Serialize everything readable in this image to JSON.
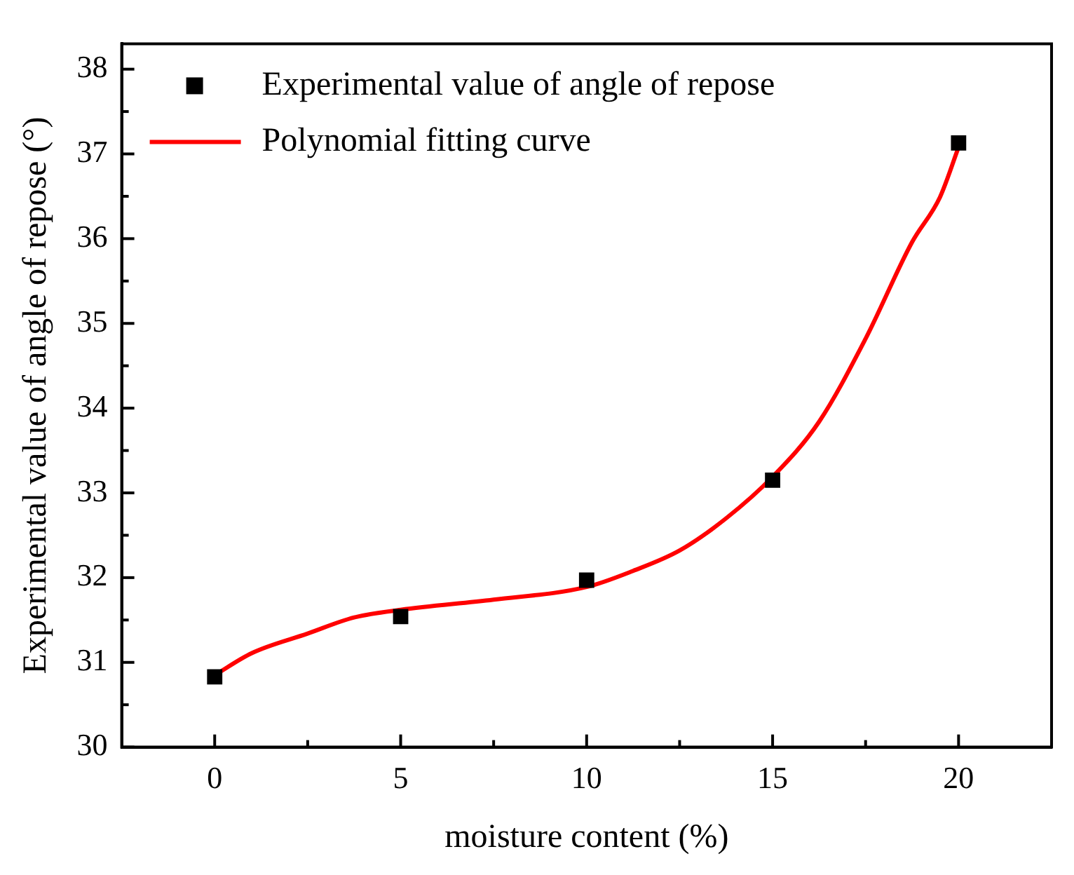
{
  "chart_data": {
    "type": "scatter",
    "xlabel": "moisture content (%)",
    "ylabel": "Experimental value of angle of repose (°)",
    "xlim": [
      -2.5,
      22.5
    ],
    "xticks": [
      0,
      {
        "value": 2.5,
        "label": null
      },
      5,
      {
        "value": 7.5,
        "label": null
      },
      10,
      {
        "value": 12.5,
        "label": null
      },
      15,
      {
        "value": 17.5,
        "label": null
      },
      20
    ],
    "ylim": [
      30,
      38.3
    ],
    "yticks": [
      30,
      {
        "value": 30.5,
        "label": null
      },
      31,
      {
        "value": 31.5,
        "label": null
      },
      32,
      {
        "value": 32.5,
        "label": null
      },
      33,
      {
        "value": 33.5,
        "label": null
      },
      34,
      {
        "value": 34.5,
        "label": null
      },
      35,
      {
        "value": 35.5,
        "label": null
      },
      36,
      {
        "value": 36.5,
        "label": null
      },
      37,
      {
        "value": 37.5,
        "label": null
      },
      38
    ],
    "grid": false,
    "legend": "top left",
    "series": [
      {
        "name": "Experimental value of angle of repose",
        "marker": "square",
        "color": "#000000",
        "x": [
          0,
          5,
          10,
          15,
          20
        ],
        "values": [
          30.83,
          31.54,
          31.97,
          33.15,
          37.13
        ]
      },
      {
        "name": "Polynomial fitting curve",
        "type": "line",
        "marker": "none",
        "line_style": "solid",
        "color": "#ff0000",
        "x": [
          0,
          1,
          2.5,
          3.75,
          5,
          7.5,
          10,
          11.25,
          12.5,
          13.75,
          15,
          16.25,
          17.5,
          18.75,
          19.5,
          20
        ],
        "values": [
          30.85,
          31.11,
          31.34,
          31.53,
          31.62,
          31.74,
          31.89,
          32.08,
          32.32,
          32.7,
          33.19,
          33.84,
          34.82,
          35.96,
          36.49,
          37.08
        ]
      }
    ]
  }
}
